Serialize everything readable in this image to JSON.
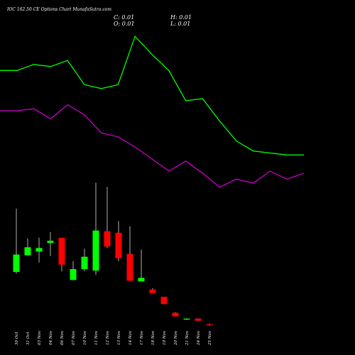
{
  "header": {
    "title": "IOC 162.50 CE Options Chart MunafaSutra.com",
    "close": "C: 0.01",
    "open": "O: 0.01",
    "high": "H: 0.01",
    "low": "L: 0.01"
  },
  "colors": {
    "background": "#000000",
    "up": "#00ff00",
    "down": "#ff0000",
    "line_green": "#00ff00",
    "line_magenta": "#cc00cc",
    "text": "#ffffff"
  },
  "chart_data": [
    {
      "type": "line",
      "title": "",
      "xlabel": "",
      "ylabel": "",
      "grid": false,
      "series": [
        {
          "values": [
            62,
            62,
            65,
            64,
            67,
            55,
            53,
            55,
            79,
            70,
            62,
            47,
            48,
            37,
            27,
            22,
            21,
            20,
            20
          ]
        },
        {
          "values": [
            42,
            42,
            43,
            38,
            45,
            40,
            31,
            29,
            24,
            18,
            12,
            17,
            11,
            4,
            8,
            6,
            12,
            8,
            11
          ]
        }
      ],
      "ylim": [
        0,
        90
      ]
    },
    {
      "type": "candlestick",
      "title": "",
      "xlabel": "",
      "ylabel": "",
      "grid": false,
      "categories": [
        "30 Oct",
        "31 Oct",
        "03 Nov",
        "04 Nov",
        "06 Nov",
        "07 Nov",
        "10 Nov",
        "11 Nov",
        "12 Nov",
        "13 Nov",
        "14 Nov",
        "17 Nov",
        "18 Nov",
        "19 Nov",
        "20 Nov",
        "21 Nov",
        "24 Nov",
        "25 Nov"
      ],
      "ylim": [
        0,
        2
      ],
      "candles": [
        {
          "open": 0.75,
          "high": 1.62,
          "low": 0.73,
          "close": 0.99
        },
        {
          "open": 0.98,
          "high": 1.21,
          "low": 0.98,
          "close": 1.09
        },
        {
          "open": 1.03,
          "high": 1.22,
          "low": 0.88,
          "close": 1.08
        },
        {
          "open": 1.15,
          "high": 1.3,
          "low": 0.97,
          "close": 1.18
        },
        {
          "open": 1.22,
          "high": 1.22,
          "low": 0.76,
          "close": 0.85
        },
        {
          "open": 0.64,
          "high": 0.9,
          "low": 0.64,
          "close": 0.79
        },
        {
          "open": 0.79,
          "high": 1.07,
          "low": 0.76,
          "close": 0.96
        },
        {
          "open": 0.77,
          "high": 1.98,
          "low": 0.71,
          "close": 1.32
        },
        {
          "open": 1.31,
          "high": 1.92,
          "low": 1.08,
          "close": 1.1
        },
        {
          "open": 1.29,
          "high": 1.45,
          "low": 0.9,
          "close": 0.94
        },
        {
          "open": 1.0,
          "high": 1.38,
          "low": 0.63,
          "close": 0.63
        },
        {
          "open": 0.62,
          "high": 1.06,
          "low": 0.62,
          "close": 0.67
        },
        {
          "open": 0.51,
          "high": 0.53,
          "low": 0.46,
          "close": 0.46
        },
        {
          "open": 0.41,
          "high": 0.41,
          "low": 0.31,
          "close": 0.31
        },
        {
          "open": 0.19,
          "high": 0.2,
          "low": 0.14,
          "close": 0.14
        },
        {
          "open": 0.1,
          "high": 0.11,
          "low": 0.09,
          "close": 0.11
        },
        {
          "open": 0.11,
          "high": 0.11,
          "low": 0.08,
          "close": 0.08
        },
        {
          "open": 0.03,
          "high": 0.04,
          "low": 0.02,
          "close": 0.02
        }
      ]
    }
  ]
}
